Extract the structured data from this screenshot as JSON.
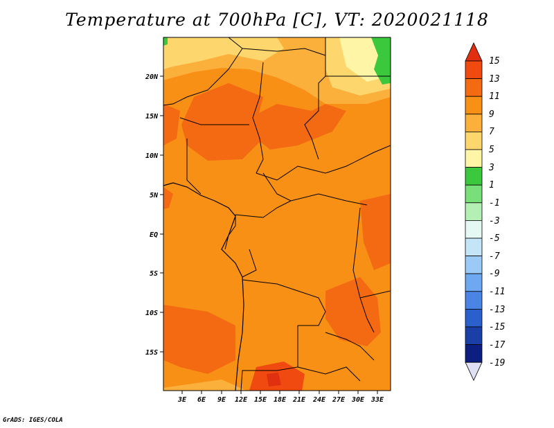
{
  "title": "Temperature at 700hPa [C], VT: 2020021118",
  "footer": "GrADS: IGES/COLA",
  "map": {
    "lat_labels": [
      "20N",
      "15N",
      "10N",
      "5N",
      "EQ",
      "5S",
      "10S",
      "15S"
    ],
    "lon_labels": [
      "3E",
      "6E",
      "9E",
      "12E",
      "15E",
      "18E",
      "21E",
      "24E",
      "27E",
      "30E",
      "33E"
    ]
  },
  "colorbar": {
    "levels": [
      "15",
      "13",
      "11",
      "9",
      "7",
      "5",
      "3",
      "1",
      "-1",
      "-3",
      "-5",
      "-7",
      "-9",
      "-11",
      "-13",
      "-15",
      "-17",
      "-19"
    ],
    "colors": [
      "#e03010",
      "#f04a10",
      "#f46a12",
      "#f89016",
      "#fbb03c",
      "#fdd66e",
      "#fef6a6",
      "#3cc83c",
      "#78e078",
      "#b4f0b4",
      "#e6f8f4",
      "#c4e4f8",
      "#9ccaf6",
      "#6ea8f0",
      "#4a84e4",
      "#2a60cc",
      "#1a40a8",
      "#0c1f80",
      "#e0e0f4"
    ]
  }
}
